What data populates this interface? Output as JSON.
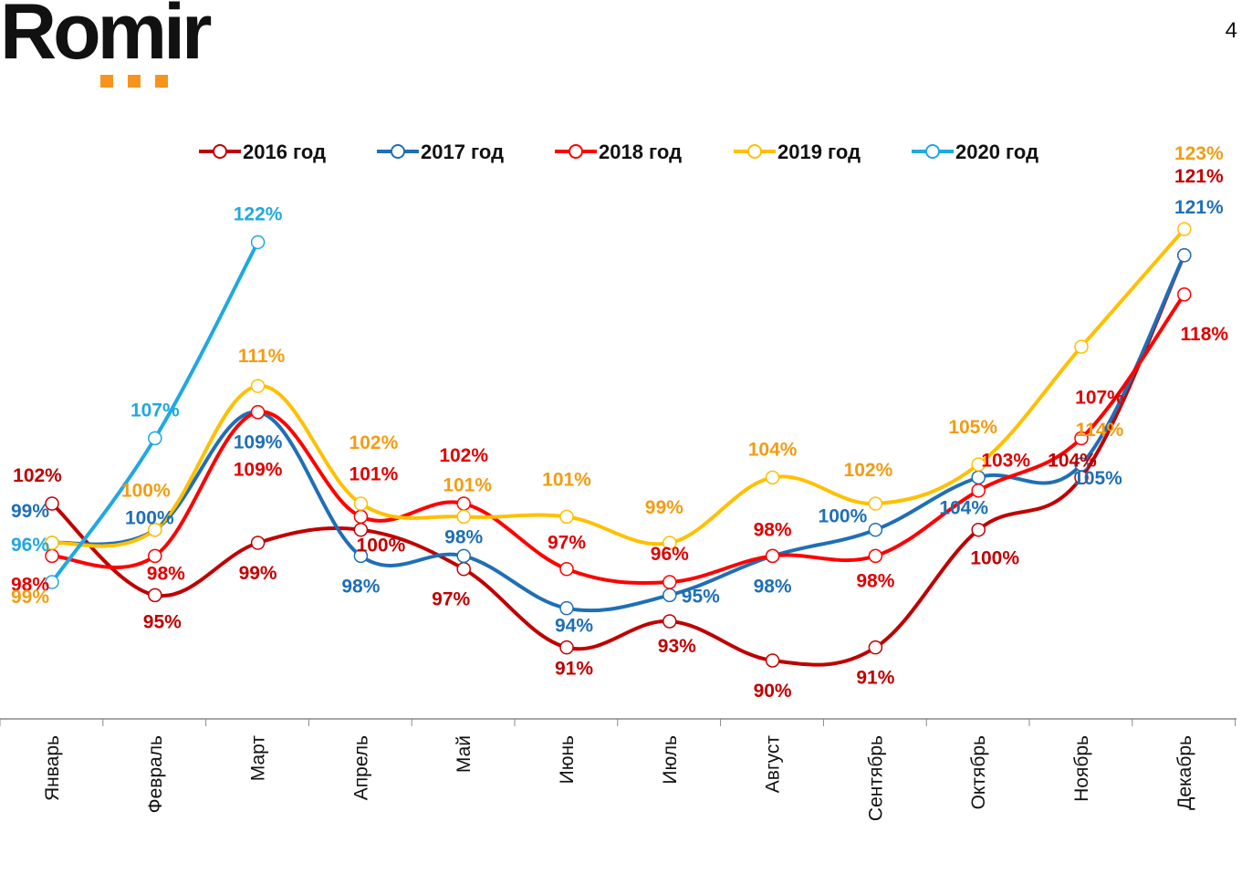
{
  "header": {
    "logo_text": "Romir",
    "page_number": "4",
    "brand_accent": "#f7941d"
  },
  "chart_data": {
    "type": "line",
    "title": "",
    "xlabel": "",
    "ylabel": "",
    "grid": false,
    "legend_position": "top",
    "categories": [
      "Январь",
      "Февраль",
      "Март",
      "Апрель",
      "Май",
      "Июнь",
      "Июль",
      "Август",
      "Сентябрь",
      "Октябрь",
      "Ноябрь",
      "Декабрь"
    ],
    "ylim": [
      85,
      125
    ],
    "value_suffix": "%",
    "series": [
      {
        "name": "2016 год",
        "color": "#c00000",
        "values": [
          102,
          95,
          99,
          100,
          97,
          91,
          93,
          90,
          91,
          100,
          104,
          121
        ]
      },
      {
        "name": "2017 год",
        "color": "#1f6fb5",
        "values": [
          99,
          100,
          109,
          98,
          98,
          94,
          95,
          98,
          100,
          104,
          105,
          121
        ]
      },
      {
        "name": "2018 год",
        "color": "#ff0000",
        "values": [
          98,
          98,
          109,
          101,
          102,
          97,
          96,
          98,
          98,
          103,
          107,
          118
        ]
      },
      {
        "name": "2019 год",
        "color": "#ffc000",
        "values": [
          99,
          100,
          111,
          102,
          101,
          101,
          99,
          104,
          102,
          105,
          114,
          123
        ]
      },
      {
        "name": "2020 год",
        "color": "#20a8e0",
        "values": [
          96,
          107,
          122
        ]
      }
    ],
    "label_colors": {
      "2016 год": "#c00000",
      "2017 год": "#1f6fb5",
      "2018 год": "#e00000",
      "2019 год": "#f39c12",
      "2020 год": "#20a8e0"
    }
  }
}
